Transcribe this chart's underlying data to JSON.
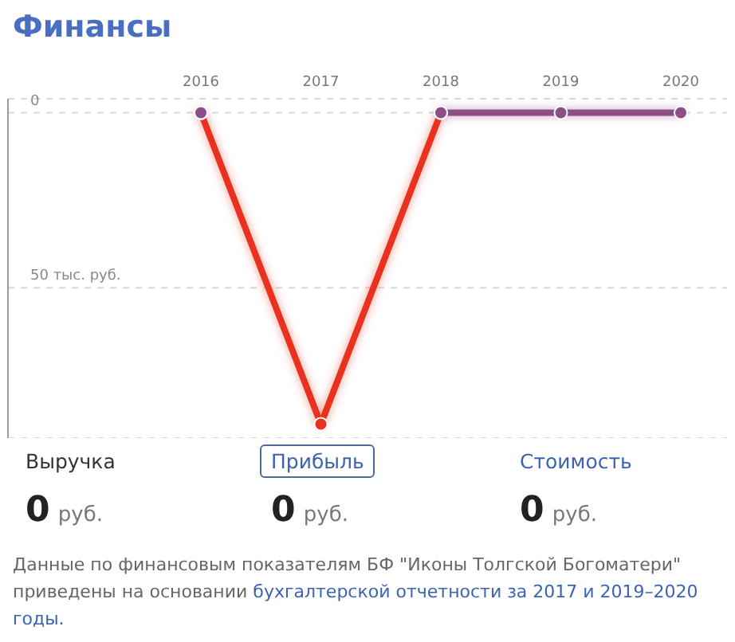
{
  "chart_data": {
    "type": "line",
    "title": "Финансы",
    "categories": [
      "2016",
      "2017",
      "2018",
      "2019",
      "2020"
    ],
    "series": [
      {
        "color": "#e8321e",
        "values": [
          0,
          -89,
          0,
          null,
          null
        ]
      },
      {
        "color": "#8b4f86",
        "values": [
          0,
          null,
          0,
          0,
          0
        ]
      }
    ],
    "yticks": [
      0,
      {
        "value": -50,
        "label": "50 тыс. руб."
      }
    ],
    "ylim": [
      -93,
      4
    ],
    "grid": "y",
    "marker": "circle",
    "line_style": "solid",
    "legend": false,
    "annotations": [
      "Выручка",
      "Прибыль",
      "Стоимость",
      "0 руб.",
      "0 руб.",
      "0 руб.",
      "Данные по финансовым показателям БФ \"Иконы Толгской Богоматери\" приведены на основании",
      "бухгалтерской отчетности за 2017 и 2019–2020 годы."
    ]
  }
}
